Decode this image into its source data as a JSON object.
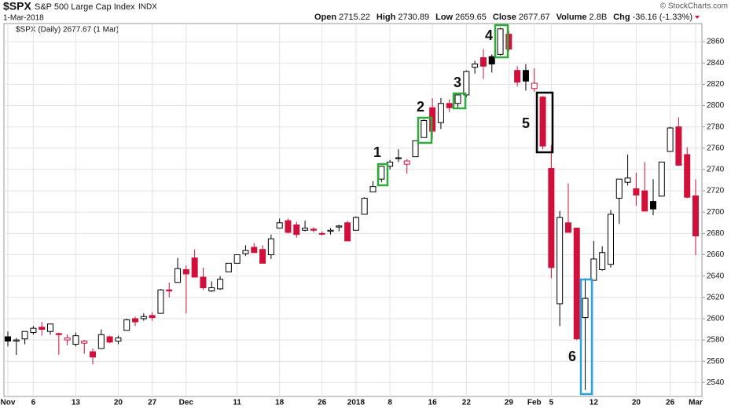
{
  "header": {
    "symbol": "$SPX",
    "name": "S&P 500 Large Cap Index",
    "exchange": "INDX",
    "date": "1-Mar-2018",
    "quote": [
      {
        "label": "Open",
        "value": 2715.22
      },
      {
        "label": "High",
        "value": 2730.89
      },
      {
        "label": "Low",
        "value": 2659.65
      },
      {
        "label": "Close",
        "value": 2677.67
      },
      {
        "label": "Volume",
        "value": "2.8B"
      },
      {
        "label": "Chg",
        "value": "-36.16 (-1.33%)"
      }
    ],
    "credit": "© StockCharts.com"
  },
  "chart_data": {
    "type": "candlestick",
    "legend": "$SPX (Daily) 2677.67 (1 Mar)",
    "categories": [
      "Nov",
      null,
      null,
      "6",
      null,
      null,
      null,
      null,
      "13",
      null,
      null,
      null,
      null,
      "20",
      null,
      null,
      null,
      "27",
      null,
      null,
      null,
      "Dec",
      null,
      null,
      null,
      null,
      null,
      "11",
      null,
      null,
      null,
      null,
      "18",
      null,
      null,
      null,
      null,
      "26",
      null,
      null,
      null,
      "2018",
      null,
      null,
      null,
      "8",
      null,
      null,
      null,
      null,
      "16",
      null,
      null,
      null,
      "22",
      null,
      null,
      null,
      null,
      "29",
      null,
      null,
      "Feb",
      null,
      "5",
      null,
      null,
      null,
      null,
      "12",
      null,
      null,
      null,
      null,
      "20",
      null,
      null,
      null,
      "26",
      null,
      null,
      "Mar"
    ],
    "open": [
      2583,
      2579,
      2581,
      2587,
      2592,
      2588,
      2586,
      2580,
      2576,
      2577,
      2569,
      2572,
      2583,
      2579,
      2589,
      2600,
      2600,
      2603,
      2605,
      2627,
      2634,
      2646,
      2657,
      2639,
      2626,
      2628,
      2644,
      2652,
      2661,
      2667,
      2665,
      2660,
      2685,
      2692,
      2688,
      2683,
      2684,
      2680,
      2682,
      2686,
      2690,
      2683,
      2698,
      2719,
      2731,
      2743,
      2751,
      2745,
      2752,
      2770,
      2798,
      2784,
      2802,
      2802,
      2810,
      2836,
      2845,
      2846,
      2848,
      2867,
      2833,
      2833,
      2816,
      2808,
      2741,
      2614,
      2690,
      2685,
      2601,
      2636,
      2646,
      2651,
      2713,
      2728,
      2722,
      2720,
      2710,
      2715,
      2757,
      2780,
      2754,
      2715.22
    ],
    "high": [
      2588,
      2582,
      2588,
      2593,
      2597,
      2595,
      2587,
      2585,
      2587,
      2580,
      2572,
      2590,
      2584,
      2584,
      2600,
      2602,
      2605,
      2606,
      2628,
      2634,
      2657,
      2650,
      2665,
      2648,
      2635,
      2640,
      2652,
      2660,
      2669,
      2671,
      2669,
      2679,
      2694,
      2694,
      2691,
      2692,
      2686,
      2682,
      2685,
      2688,
      2692,
      2696,
      2714,
      2729,
      2743,
      2749,
      2759,
      2750,
      2767,
      2787,
      2807,
      2807,
      2806,
      2810,
      2833,
      2842,
      2853,
      2848,
      2873,
      2870,
      2837,
      2839,
      2835,
      2809,
      2763,
      2701,
      2727,
      2685,
      2638,
      2673,
      2668,
      2702,
      2731,
      2754,
      2737,
      2747,
      2731,
      2747,
      2780,
      2789,
      2761,
      2730.89
    ],
    "low": [
      2574,
      2566,
      2576,
      2585,
      2584,
      2585,
      2566,
      2575,
      2574,
      2567,
      2557,
      2572,
      2577,
      2576,
      2589,
      2593,
      2598,
      2598,
      2605,
      2620,
      2634,
      2605,
      2639,
      2627,
      2625,
      2627,
      2644,
      2652,
      2659,
      2662,
      2652,
      2656,
      2685,
      2680,
      2676,
      2682,
      2681,
      2678,
      2679,
      2682,
      2673,
      2683,
      2698,
      2719,
      2728,
      2740,
      2747,
      2736,
      2752,
      2770,
      2769,
      2778,
      2794,
      2798,
      2808,
      2830,
      2825,
      2831,
      2847,
      2851,
      2818,
      2814,
      2813,
      2759,
      2638,
      2593,
      2681,
      2580,
      2533,
      2636,
      2645,
      2648,
      2689,
      2725,
      2706,
      2701,
      2697,
      2715,
      2757,
      2744,
      2713,
      2659.65
    ],
    "close": [
      2579,
      2580,
      2588,
      2591,
      2590,
      2595,
      2585,
      2582,
      2584,
      2579,
      2564,
      2585,
      2578,
      2582,
      2599,
      2597,
      2602,
      2601,
      2627,
      2626,
      2647,
      2642,
      2639,
      2629,
      2629,
      2637,
      2652,
      2660,
      2664,
      2662,
      2652,
      2675,
      2690,
      2681,
      2679,
      2685,
      2683,
      2680,
      2683,
      2687,
      2673,
      2695,
      2713,
      2724,
      2743,
      2747,
      2751,
      2748,
      2767,
      2786,
      2776,
      2802,
      2798,
      2810,
      2832,
      2839,
      2837,
      2839,
      2872,
      2853,
      2822,
      2823,
      2821,
      2762,
      2648,
      2695,
      2681,
      2581,
      2619,
      2656,
      2662,
      2698,
      2731,
      2732,
      2716,
      2701,
      2703,
      2747,
      2779,
      2744,
      2714,
      2677.67
    ],
    "up_color": "#000000",
    "down_color": "#d0103a",
    "ylim": [
      2527,
      2877
    ],
    "yticks": [
      2540,
      2560,
      2580,
      2600,
      2620,
      2640,
      2660,
      2680,
      2700,
      2720,
      2740,
      2760,
      2780,
      2800,
      2820,
      2840,
      2860
    ],
    "grid": true,
    "annotations": [
      "1",
      "2",
      "3",
      "4",
      "5",
      "6"
    ]
  }
}
